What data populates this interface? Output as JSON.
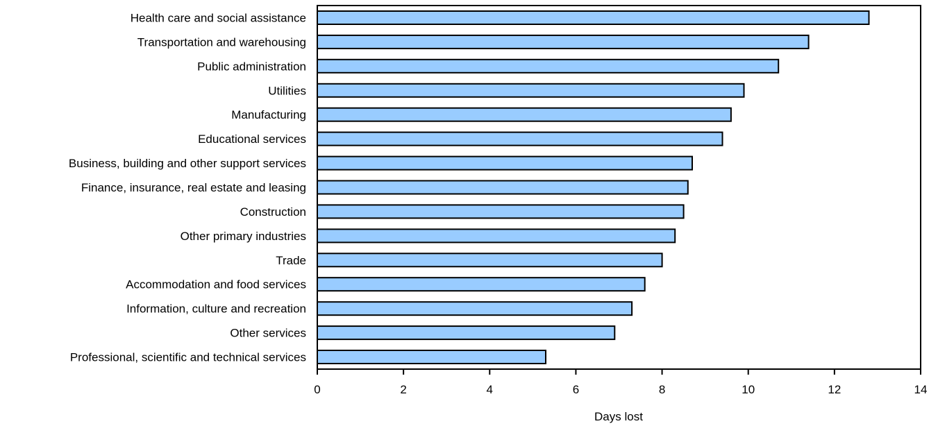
{
  "chart_data": {
    "type": "bar",
    "orientation": "horizontal",
    "categories": [
      "Health care and social assistance",
      "Transportation and warehousing",
      "Public administration",
      "Utilities",
      "Manufacturing",
      "Educational services",
      "Business, building and other support services",
      "Finance, insurance, real estate and leasing",
      "Construction",
      "Other primary industries",
      "Trade",
      "Accommodation and food services",
      "Information, culture and recreation",
      "Other services",
      "Professional, scientific and technical services"
    ],
    "values": [
      12.8,
      11.4,
      10.7,
      9.9,
      9.6,
      9.4,
      8.7,
      8.6,
      8.5,
      8.3,
      8.0,
      7.6,
      7.3,
      6.9,
      5.3
    ],
    "title": "",
    "xlabel": "Days lost",
    "ylabel": "",
    "xlim": [
      0,
      14
    ],
    "xticks": [
      0,
      2,
      4,
      6,
      8,
      10,
      12,
      14
    ],
    "tick_labels": [
      "0",
      "2",
      "4",
      "6",
      "8",
      "10",
      "12",
      "14"
    ],
    "grid": false,
    "legend": "none",
    "bar_color": "#99ccff",
    "bar_edge_color": "#000000"
  }
}
